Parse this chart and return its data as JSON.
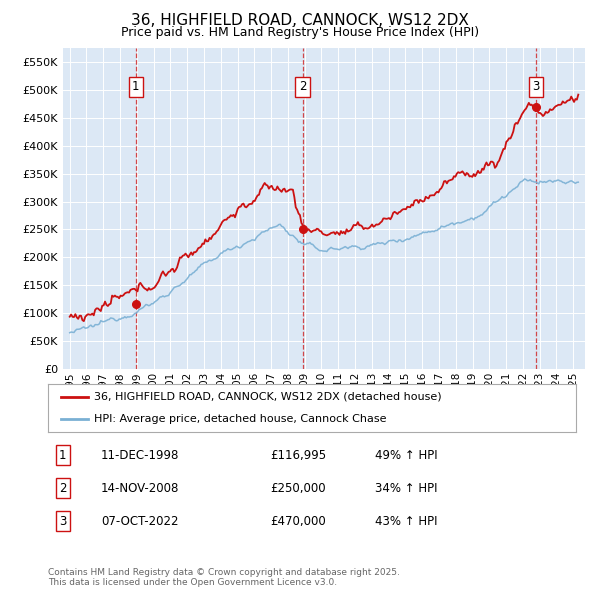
{
  "title": "36, HIGHFIELD ROAD, CANNOCK, WS12 2DX",
  "subtitle": "Price paid vs. HM Land Registry's House Price Index (HPI)",
  "bg_color": "#ffffff",
  "plot_bg_color": "#dce8f5",
  "grid_color": "#ffffff",
  "hpi_color": "#7ab0d4",
  "price_color": "#cc1111",
  "sale_dates": [
    1998.94,
    2008.87,
    2022.77
  ],
  "sale_prices": [
    116995,
    250000,
    470000
  ],
  "sale_labels": [
    "1",
    "2",
    "3"
  ],
  "legend_line1": "36, HIGHFIELD ROAD, CANNOCK, WS12 2DX (detached house)",
  "legend_line2": "HPI: Average price, detached house, Cannock Chase",
  "table_data": [
    [
      "1",
      "11-DEC-1998",
      "£116,995",
      "49% ↑ HPI"
    ],
    [
      "2",
      "14-NOV-2008",
      "£250,000",
      "34% ↑ HPI"
    ],
    [
      "3",
      "07-OCT-2022",
      "£470,000",
      "43% ↑ HPI"
    ]
  ],
  "footer": "Contains HM Land Registry data © Crown copyright and database right 2025.\nThis data is licensed under the Open Government Licence v3.0.",
  "ylim": [
    0,
    575000
  ],
  "yticks": [
    0,
    50000,
    100000,
    150000,
    200000,
    250000,
    300000,
    350000,
    400000,
    450000,
    500000,
    550000
  ],
  "ytick_labels": [
    "£0",
    "£50K",
    "£100K",
    "£150K",
    "£200K",
    "£250K",
    "£300K",
    "£350K",
    "£400K",
    "£450K",
    "£500K",
    "£550K"
  ],
  "xlim_start": 1994.6,
  "xlim_end": 2025.7,
  "xticks": [
    1995,
    1996,
    1997,
    1998,
    1999,
    2000,
    2001,
    2002,
    2003,
    2004,
    2005,
    2006,
    2007,
    2008,
    2009,
    2010,
    2011,
    2012,
    2013,
    2014,
    2015,
    2016,
    2017,
    2018,
    2019,
    2020,
    2021,
    2022,
    2023,
    2024,
    2025
  ]
}
